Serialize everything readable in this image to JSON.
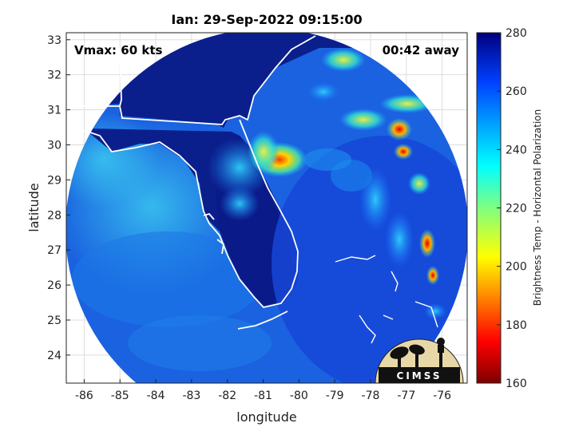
{
  "title": "Ian: 29-Sep-2022 09:15:00",
  "annotations": {
    "vmax": "Vmax: 60 kts",
    "time_away": "00:42 away"
  },
  "axes": {
    "xlabel": "longitude",
    "ylabel": "latitude",
    "x_ticks": [
      "-86",
      "-85",
      "-84",
      "-83",
      "-82",
      "-81",
      "-80",
      "-79",
      "-78",
      "-77",
      "-76"
    ],
    "y_ticks": [
      "33",
      "32",
      "31",
      "30",
      "29",
      "28",
      "27",
      "26",
      "25",
      "24"
    ],
    "xlim": [
      -86.5,
      -75.3
    ],
    "ylim": [
      23.2,
      33.2
    ]
  },
  "colorbar": {
    "label": "Brightness Temp - Horizontal Polarization",
    "ticks": [
      "280",
      "260",
      "240",
      "220",
      "200",
      "180",
      "160"
    ],
    "range": [
      160,
      280
    ],
    "colormap": "jet"
  },
  "logo": {
    "text": "CIMSS"
  },
  "colors": {
    "land_cold": "#0b1f8c",
    "ocean_warm": "#1a6fe0",
    "coast": "#ffffff"
  }
}
